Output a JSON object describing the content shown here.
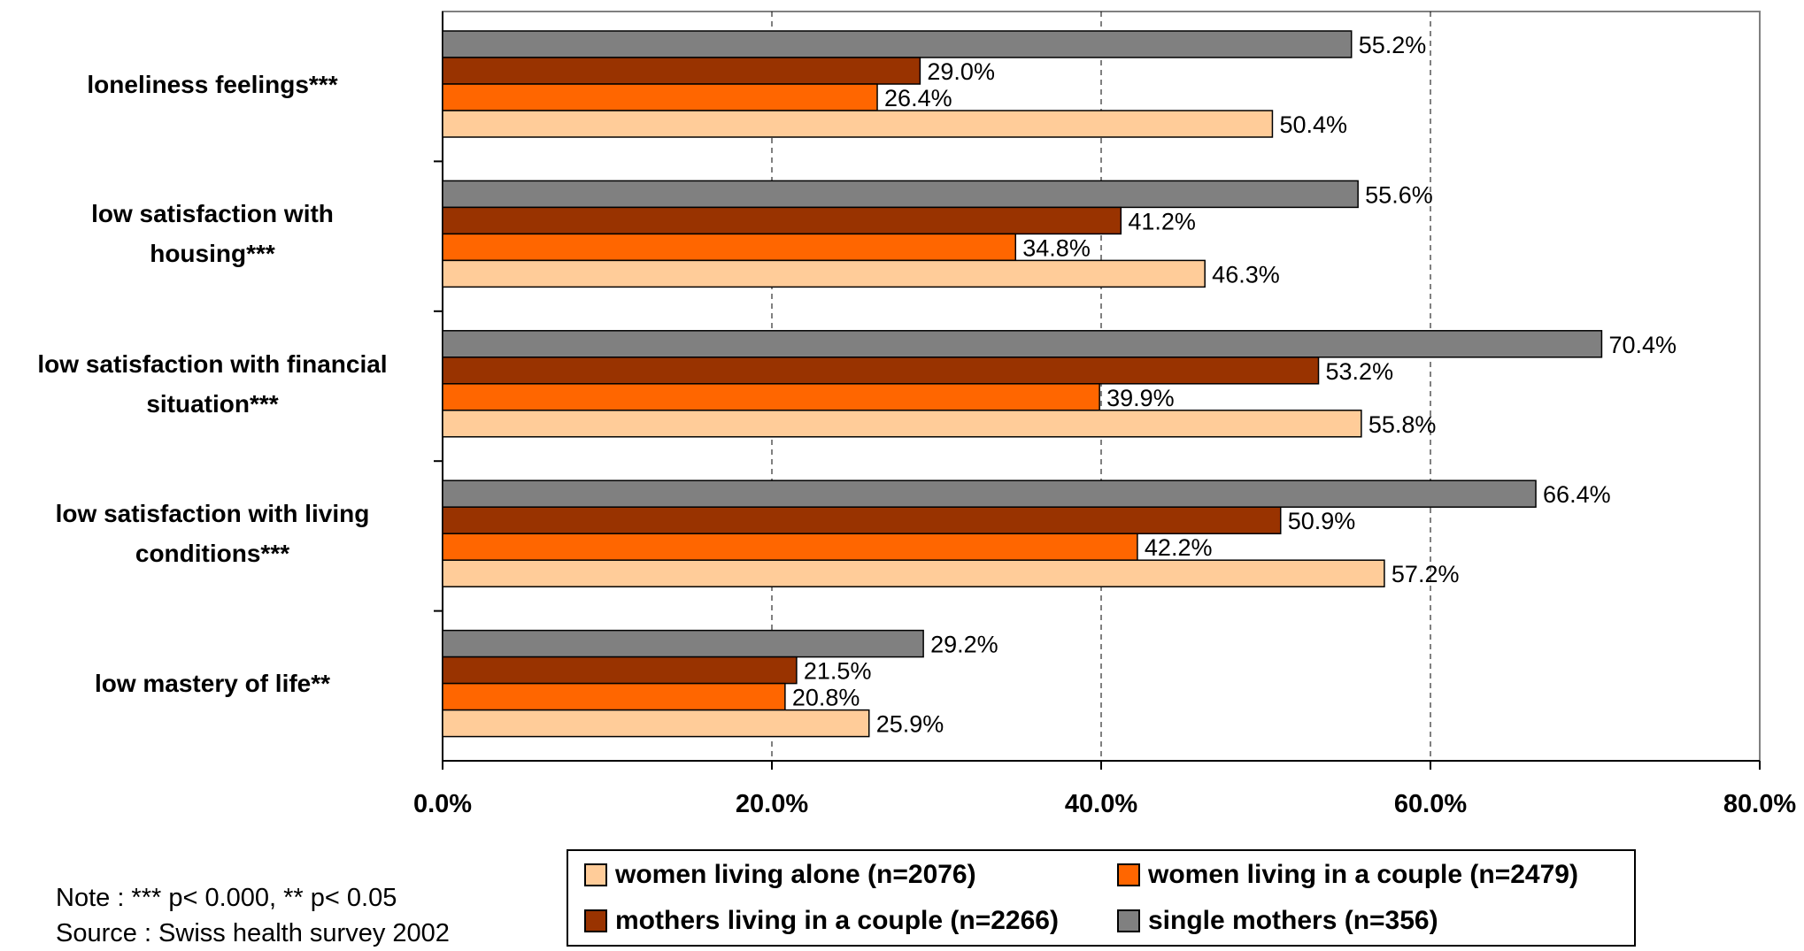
{
  "chart_data": {
    "type": "bar",
    "orientation": "horizontal",
    "categories": [
      "loneliness feelings***",
      "low satisfaction with housing***",
      "low satisfaction with financial situation***",
      "low satisfaction with living conditions***",
      "low mastery of life**"
    ],
    "category_lines": [
      [
        "loneliness feelings***"
      ],
      [
        "low satisfaction with",
        "housing***"
      ],
      [
        "low satisfaction with financial",
        "situation***"
      ],
      [
        "low satisfaction with living",
        "conditions***"
      ],
      [
        "low mastery of life**"
      ]
    ],
    "series": [
      {
        "name": "single mothers (n=356)",
        "color": "#808080",
        "values": [
          55.2,
          55.6,
          70.4,
          66.4,
          29.2
        ],
        "labels": [
          "55.2%",
          "55.6%",
          "70.4%",
          "66.4%",
          "29.2%"
        ]
      },
      {
        "name": "mothers living in a couple (n=2266)",
        "color": "#993300",
        "values": [
          29.0,
          41.2,
          53.2,
          50.9,
          21.5
        ],
        "labels": [
          "29.0%",
          "41.2%",
          "53.2%",
          "50.9%",
          "21.5%"
        ]
      },
      {
        "name": "women living in a couple (n=2479)",
        "color": "#FF6600",
        "values": [
          26.4,
          34.8,
          39.9,
          42.2,
          20.8
        ],
        "labels": [
          "26.4%",
          "34.8%",
          "39.9%",
          "42.2%",
          "20.8%"
        ]
      },
      {
        "name": "women living alone (n=2076)",
        "color": "#FFCC99",
        "values": [
          50.4,
          46.3,
          55.8,
          57.2,
          25.9
        ],
        "labels": [
          "50.4%",
          "46.3%",
          "55.8%",
          "57.2%",
          "25.9%"
        ]
      }
    ],
    "xlim": [
      0,
      80
    ],
    "xticks": [
      0,
      20,
      40,
      60,
      80
    ],
    "xtick_labels": [
      "0.0%",
      "20.0%",
      "40.0%",
      "60.0%",
      "80.0%"
    ],
    "grid": "vertical dashed",
    "legend_position": "bottom",
    "legend_order": [
      3,
      2,
      1,
      0
    ]
  },
  "note": {
    "line1": "Note : *** p< 0.000, ** p< 0.05",
    "line2": "Source : Swiss health survey 2002"
  }
}
